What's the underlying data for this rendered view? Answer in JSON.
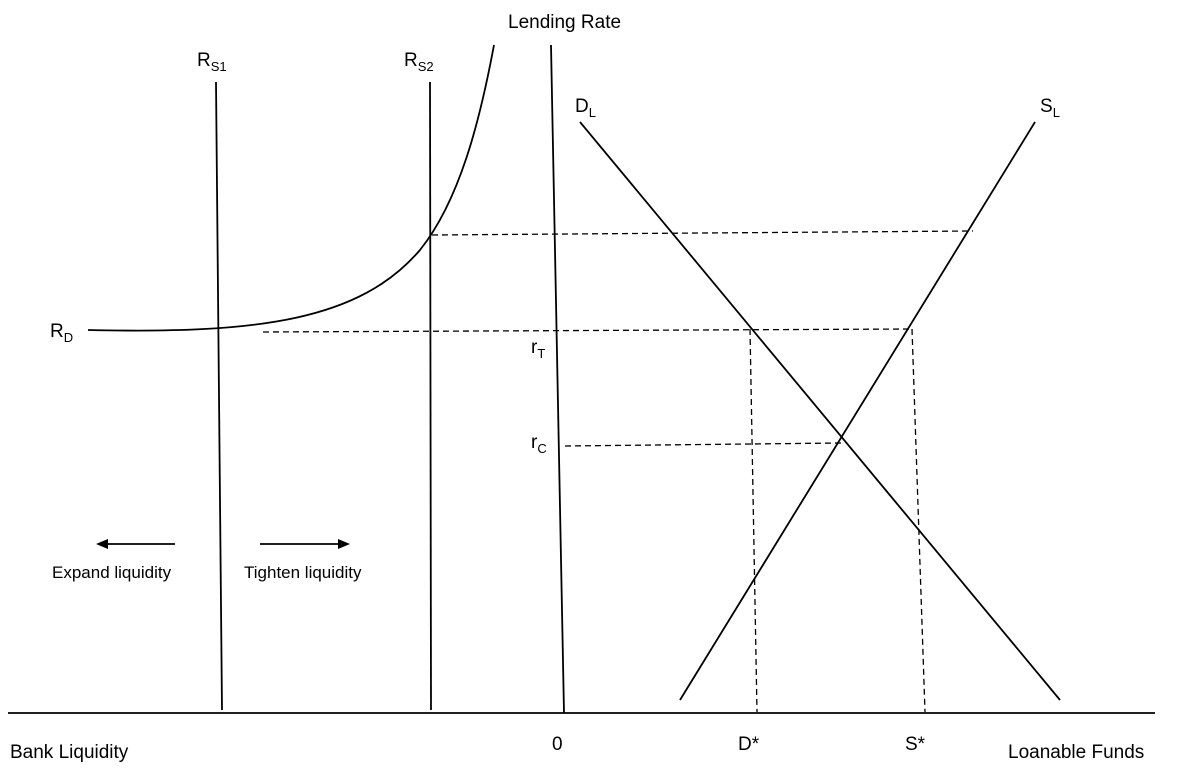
{
  "labels": {
    "lending_rate": "Lending Rate",
    "rs1_main": "R",
    "rs1_sub": "S1",
    "rs2_main": "R",
    "rs2_sub": "S2",
    "dl_main": "D",
    "dl_sub": "L",
    "sl_main": "S",
    "sl_sub": "L",
    "rd_main": "R",
    "rd_sub": "D",
    "rt_main": "r",
    "rt_sub": "T",
    "rc_main": "r",
    "rc_sub": "C",
    "expand": "Expand liquidity",
    "tighten": "Tighten liquidity",
    "bank_liquidity": "Bank Liquidity",
    "origin": "0",
    "d_star": "D*",
    "s_star": "S*",
    "loanable_funds": "Loanable Funds"
  }
}
